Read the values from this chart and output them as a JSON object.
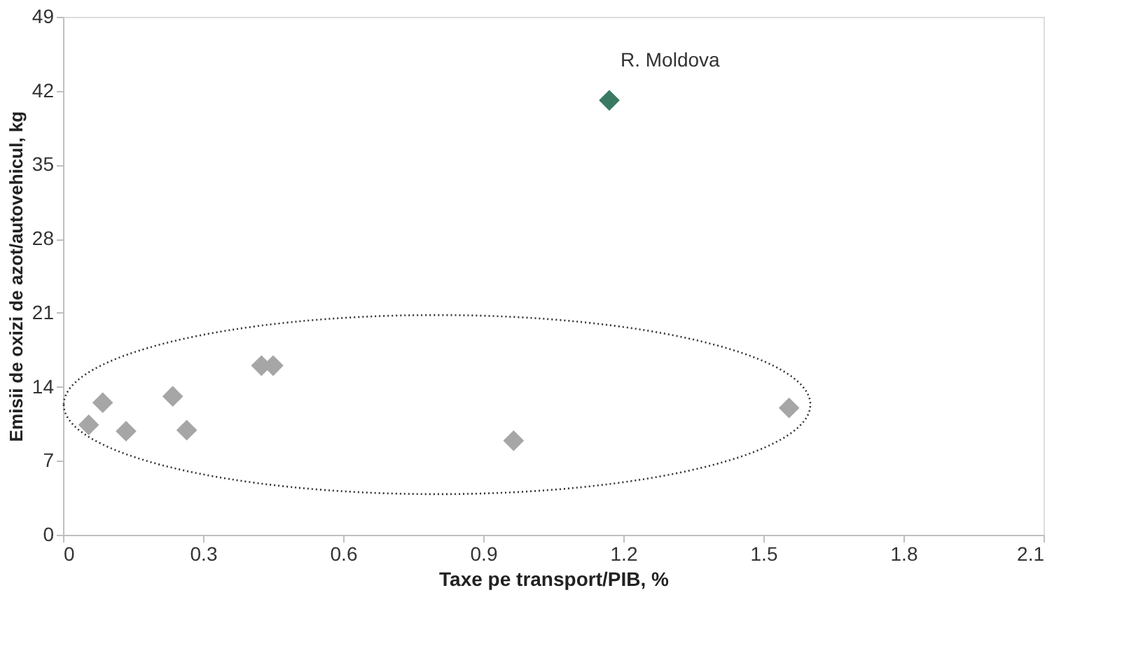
{
  "chart_data": {
    "type": "scatter",
    "xlabel": "Taxe pe transport/PIB, %",
    "ylabel": "Emisii de oxizi de azot/autovehicul, kg",
    "xlim": [
      0,
      2.1
    ],
    "xticks": [
      0,
      0.3,
      0.6,
      0.9,
      1.2,
      1.5,
      1.8,
      2.1
    ],
    "ylim": [
      0,
      49
    ],
    "yticks": [
      0,
      7,
      14,
      21,
      28,
      35,
      42,
      49
    ],
    "marker": "diamond",
    "annotations": [
      {
        "text": "R. Moldova",
        "x": 1.17,
        "y": 41.1
      }
    ],
    "series": [
      {
        "color": "#a6a6a6",
        "x": [
          0.055,
          0.085,
          0.135,
          0.235,
          0.265,
          0.425,
          0.45,
          0.965,
          1.555
        ],
        "values": [
          10.4,
          12.5,
          9.8,
          13.1,
          9.9,
          16.0,
          16.0,
          8.9,
          12.0
        ]
      },
      {
        "color": "#3a7a62",
        "x": [
          1.17
        ],
        "values": [
          41.1
        ]
      }
    ]
  }
}
